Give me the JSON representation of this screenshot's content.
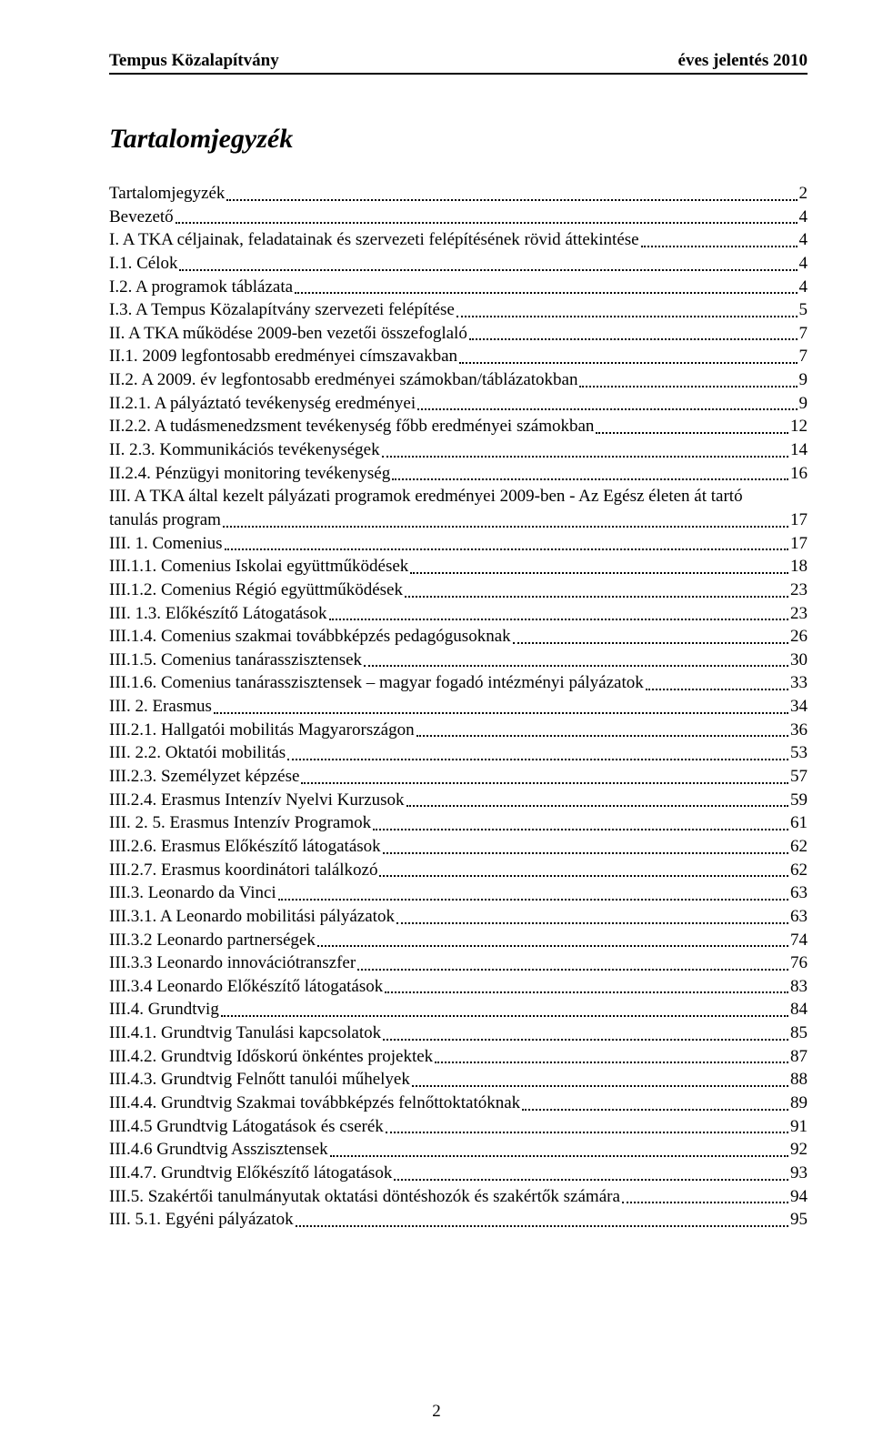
{
  "header": {
    "left": "Tempus Közalapítvány",
    "right": "éves jelentés  2010"
  },
  "toc_title": "Tartalomjegyzék",
  "page_number": "2",
  "entries": [
    {
      "label": "Tartalomjegyzék",
      "page": "2"
    },
    {
      "label": "Bevezető",
      "page": "4"
    },
    {
      "label": "I. A TKA céljainak, feladatainak és szervezeti felépítésének rövid áttekintése",
      "page": "4"
    },
    {
      "label": "I.1. Célok",
      "page": "4"
    },
    {
      "label": "I.2. A programok táblázata",
      "page": "4"
    },
    {
      "label": "I.3. A Tempus Közalapítvány szervezeti felépítése",
      "page": "5"
    },
    {
      "label": "II. A TKA működése 2009-ben  vezetői összefoglaló",
      "page": "7"
    },
    {
      "label": "II.1. 2009 legfontosabb eredményei címszavakban",
      "page": "7"
    },
    {
      "label": "II.2. A 2009. év legfontosabb eredményei számokban/táblázatokban",
      "page": "9"
    },
    {
      "label": "II.2.1. A pályáztató tevékenység eredményei",
      "page": "9"
    },
    {
      "label": "II.2.2. A tudásmenedzsment tevékenység főbb eredményei számokban",
      "page": "12"
    },
    {
      "label": "II. 2.3. Kommunikációs tevékenységek",
      "page": "14"
    },
    {
      "label": "II.2.4. Pénzügyi monitoring tevékenység",
      "page": "16"
    },
    {
      "label_multi": [
        "III. A TKA által kezelt pályázati programok eredményei 2009-ben - Az Egész életen át tartó",
        "tanulás program"
      ],
      "page": "17"
    },
    {
      "label": "III. 1. Comenius",
      "page": "17"
    },
    {
      "label": "III.1.1. Comenius Iskolai együttműködések",
      "page": "18"
    },
    {
      "label": "III.1.2. Comenius Régió együttműködések",
      "page": "23"
    },
    {
      "label": "III. 1.3. Előkészítő Látogatások",
      "page": "23"
    },
    {
      "label": "III.1.4. Comenius szakmai továbbképzés pedagógusoknak",
      "page": "26"
    },
    {
      "label": "III.1.5. Comenius tanárasszisztensek",
      "page": "30"
    },
    {
      "label": "III.1.6. Comenius tanárasszisztensek – magyar fogadó intézményi pályázatok",
      "page": "33"
    },
    {
      "label": "III. 2. Erasmus",
      "page": "34"
    },
    {
      "label": "III.2.1. Hallgatói mobilitás Magyarországon",
      "page": "36"
    },
    {
      "label": "III. 2.2. Oktatói mobilitás",
      "page": "53"
    },
    {
      "label": "III.2.3. Személyzet képzése",
      "page": "57"
    },
    {
      "label": "III.2.4. Erasmus Intenzív Nyelvi Kurzusok",
      "page": "59"
    },
    {
      "label": "III. 2. 5. Erasmus Intenzív Programok",
      "page": "61"
    },
    {
      "label": "III.2.6. Erasmus Előkészítő látogatások",
      "page": "62"
    },
    {
      "label": "III.2.7. Erasmus koordinátori találkozó",
      "page": "62"
    },
    {
      "label": "III.3. Leonardo da Vinci",
      "page": "63"
    },
    {
      "label": "III.3.1. A Leonardo mobilitási pályázatok",
      "page": "63"
    },
    {
      "label": "III.3.2 Leonardo partnerségek",
      "page": "74"
    },
    {
      "label": "III.3.3 Leonardo innovációtranszfer",
      "page": "76"
    },
    {
      "label": "III.3.4 Leonardo Előkészítő látogatások",
      "page": "83"
    },
    {
      "label": "III.4. Grundtvig",
      "page": "84"
    },
    {
      "label": "III.4.1. Grundtvig Tanulási kapcsolatok",
      "page": "85"
    },
    {
      "label": "III.4.2. Grundtvig Időskorú  önkéntes projektek",
      "page": "87"
    },
    {
      "label": "III.4.3. Grundtvig Felnőtt tanulói műhelyek",
      "page": "88"
    },
    {
      "label": "III.4.4. Grundtvig Szakmai továbbképzés felnőttoktatóknak",
      "page": "89"
    },
    {
      "label": "III.4.5 Grundtvig Látogatások és cserék",
      "page": "91"
    },
    {
      "label": "III.4.6 Grundtvig Asszisztensek",
      "page": "92"
    },
    {
      "label": "III.4.7. Grundtvig Előkészítő látogatások",
      "page": "93"
    },
    {
      "label": "III.5. Szakértői tanulmányutak oktatási döntéshozók és szakértők számára",
      "page": "94"
    },
    {
      "label": "III. 5.1. Egyéni pályázatok",
      "page": "95"
    }
  ]
}
